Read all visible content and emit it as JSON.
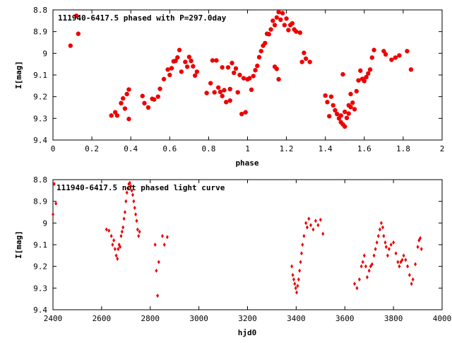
{
  "marker_color": "#ee0000",
  "chart_data": [
    {
      "type": "scatter",
      "title": "111940-6417.5 phased with P=297.0day",
      "xlabel": "phase",
      "ylabel": "I[mag]",
      "xlim": [
        0,
        2
      ],
      "ylim": [
        8.8,
        9.4
      ],
      "y_inverted": true,
      "x_ticks": [
        "0",
        "0.2",
        "0.4",
        "0.6",
        "0.8",
        "1",
        "1.2",
        "1.4",
        "1.6",
        "1.8",
        "2"
      ],
      "y_ticks": [
        "8.8",
        "8.9",
        "9",
        "9.1",
        "9.2",
        "9.3",
        "9.4"
      ],
      "grid": false,
      "marker": "filled-circle",
      "points": [
        [
          0.09,
          8.965
        ],
        [
          0.12,
          8.827
        ],
        [
          0.13,
          8.91
        ],
        [
          0.3,
          9.287
        ],
        [
          0.32,
          9.272
        ],
        [
          0.33,
          9.287
        ],
        [
          0.35,
          9.23
        ],
        [
          0.36,
          9.208
        ],
        [
          0.37,
          9.255
        ],
        [
          0.38,
          9.188
        ],
        [
          0.39,
          9.167
        ],
        [
          0.39,
          9.303
        ],
        [
          0.46,
          9.197
        ],
        [
          0.47,
          9.23
        ],
        [
          0.49,
          9.25
        ],
        [
          0.51,
          9.21
        ],
        [
          0.52,
          9.213
        ],
        [
          0.54,
          9.2
        ],
        [
          0.55,
          9.164
        ],
        [
          0.57,
          9.119
        ],
        [
          0.59,
          9.075
        ],
        [
          0.6,
          9.1
        ],
        [
          0.61,
          9.069
        ],
        [
          0.62,
          9.037
        ],
        [
          0.63,
          9.035
        ],
        [
          0.64,
          9.019
        ],
        [
          0.65,
          8.985
        ],
        [
          0.66,
          9.085
        ],
        [
          0.68,
          9.04
        ],
        [
          0.69,
          9.062
        ],
        [
          0.7,
          9.017
        ],
        [
          0.71,
          9.035
        ],
        [
          0.72,
          9.06
        ],
        [
          0.73,
          9.103
        ],
        [
          0.74,
          9.085
        ],
        [
          0.79,
          9.183
        ],
        [
          0.81,
          9.138
        ],
        [
          0.82,
          9.033
        ],
        [
          0.83,
          9.18
        ],
        [
          0.84,
          9.033
        ],
        [
          0.85,
          9.158
        ],
        [
          0.86,
          9.178
        ],
        [
          0.87,
          9.197
        ],
        [
          0.87,
          9.065
        ],
        [
          0.88,
          9.17
        ],
        [
          0.89,
          9.225
        ],
        [
          0.9,
          9.065
        ],
        [
          0.91,
          9.218
        ],
        [
          0.91,
          9.165
        ],
        [
          0.92,
          9.045
        ],
        [
          0.93,
          9.09
        ],
        [
          0.94,
          9.07
        ],
        [
          0.95,
          9.18
        ],
        [
          0.96,
          9.1
        ],
        [
          0.97,
          9.28
        ],
        [
          0.98,
          9.115
        ],
        [
          0.99,
          9.272
        ],
        [
          1.0,
          9.12
        ],
        [
          1.01,
          9.115
        ],
        [
          1.02,
          9.168
        ],
        [
          1.03,
          9.105
        ],
        [
          1.04,
          9.078
        ],
        [
          1.05,
          9.058
        ],
        [
          1.06,
          9.018
        ],
        [
          1.07,
          8.99
        ],
        [
          1.08,
          8.965
        ],
        [
          1.09,
          8.953
        ],
        [
          1.1,
          8.91
        ],
        [
          1.11,
          8.912
        ],
        [
          1.12,
          8.89
        ],
        [
          1.13,
          8.85
        ],
        [
          1.14,
          8.87
        ],
        [
          1.14,
          9.062
        ],
        [
          1.15,
          8.835
        ],
        [
          1.15,
          9.072
        ],
        [
          1.16,
          8.81
        ],
        [
          1.16,
          9.12
        ],
        [
          1.17,
          8.845
        ],
        [
          1.18,
          8.815
        ],
        [
          1.19,
          8.87
        ],
        [
          1.2,
          8.84
        ],
        [
          1.21,
          8.893
        ],
        [
          1.22,
          8.87
        ],
        [
          1.23,
          8.862
        ],
        [
          1.24,
          8.89
        ],
        [
          1.25,
          8.9
        ],
        [
          1.27,
          8.905
        ],
        [
          1.28,
          9.04
        ],
        [
          1.29,
          8.998
        ],
        [
          1.3,
          9.025
        ],
        [
          1.32,
          9.04
        ],
        [
          1.4,
          9.195
        ],
        [
          1.41,
          9.225
        ],
        [
          1.42,
          9.29
        ],
        [
          1.43,
          9.2
        ],
        [
          1.44,
          9.24
        ],
        [
          1.45,
          9.263
        ],
        [
          1.46,
          9.28
        ],
        [
          1.47,
          9.3
        ],
        [
          1.48,
          9.318
        ],
        [
          1.49,
          9.328
        ],
        [
          1.5,
          9.338
        ],
        [
          1.51,
          9.298
        ],
        [
          1.52,
          9.278
        ],
        [
          1.53,
          9.248
        ],
        [
          1.54,
          9.228
        ],
        [
          1.55,
          9.258
        ],
        [
          1.48,
          9.287
        ],
        [
          1.49,
          9.097
        ],
        [
          1.5,
          9.27
        ],
        [
          1.52,
          9.24
        ],
        [
          1.53,
          9.188
        ],
        [
          1.56,
          9.175
        ],
        [
          1.57,
          9.125
        ],
        [
          1.58,
          9.08
        ],
        [
          1.59,
          9.118
        ],
        [
          1.6,
          9.128
        ],
        [
          1.61,
          9.11
        ],
        [
          1.62,
          9.093
        ],
        [
          1.63,
          9.075
        ],
        [
          1.64,
          9.02
        ],
        [
          1.65,
          8.985
        ],
        [
          1.7,
          8.99
        ],
        [
          1.71,
          9.005
        ],
        [
          1.74,
          9.03
        ],
        [
          1.76,
          9.02
        ],
        [
          1.78,
          9.01
        ],
        [
          1.82,
          8.99
        ],
        [
          1.84,
          9.075
        ]
      ]
    },
    {
      "type": "scatter",
      "title": "111940-6417.5 not phased light curve",
      "xlabel": "hjd0",
      "ylabel": "I[mag]",
      "xlim": [
        2400,
        4000
      ],
      "ylim": [
        8.8,
        9.4
      ],
      "y_inverted": true,
      "x_ticks": [
        "2400",
        "2600",
        "2800",
        "3000",
        "3200",
        "3400",
        "3600",
        "3800",
        "4000"
      ],
      "y_ticks": [
        "8.8",
        "8.9",
        "9",
        "9.1",
        "9.2",
        "9.3",
        "9.4"
      ],
      "grid": false,
      "marker": "diamond",
      "points": [
        [
          2405,
          8.82
        ],
        [
          2412,
          8.91
        ],
        [
          2400,
          8.96
        ],
        [
          2620,
          9.03
        ],
        [
          2630,
          9.035
        ],
        [
          2640,
          9.06
        ],
        [
          2645,
          9.1
        ],
        [
          2650,
          9.08
        ],
        [
          2655,
          9.12
        ],
        [
          2660,
          9.15
        ],
        [
          2665,
          9.165
        ],
        [
          2668,
          9.12
        ],
        [
          2672,
          9.1
        ],
        [
          2676,
          9.11
        ],
        [
          2680,
          9.06
        ],
        [
          2684,
          9.04
        ],
        [
          2688,
          9.02
        ],
        [
          2692,
          8.98
        ],
        [
          2696,
          8.95
        ],
        [
          2700,
          8.9
        ],
        [
          2704,
          8.86
        ],
        [
          2708,
          8.84
        ],
        [
          2712,
          8.82
        ],
        [
          2716,
          8.815
        ],
        [
          2720,
          8.83
        ],
        [
          2724,
          8.85
        ],
        [
          2728,
          8.87
        ],
        [
          2732,
          8.9
        ],
        [
          2736,
          8.93
        ],
        [
          2740,
          8.96
        ],
        [
          2744,
          8.99
        ],
        [
          2748,
          9.03
        ],
        [
          2752,
          9.06
        ],
        [
          2756,
          9.04
        ],
        [
          2820,
          9.1
        ],
        [
          2825,
          9.22
        ],
        [
          2830,
          9.335
        ],
        [
          2835,
          9.18
        ],
        [
          2850,
          9.06
        ],
        [
          2858,
          9.1
        ],
        [
          2870,
          9.065
        ],
        [
          3382,
          9.2
        ],
        [
          3386,
          9.24
        ],
        [
          3390,
          9.26
        ],
        [
          3394,
          9.28
        ],
        [
          3398,
          9.3
        ],
        [
          3402,
          9.32
        ],
        [
          3406,
          9.29
        ],
        [
          3410,
          9.26
        ],
        [
          3414,
          9.22
        ],
        [
          3418,
          9.18
        ],
        [
          3422,
          9.14
        ],
        [
          3426,
          9.1
        ],
        [
          3432,
          9.06
        ],
        [
          3440,
          9.0
        ],
        [
          3445,
          9.02
        ],
        [
          3452,
          8.98
        ],
        [
          3460,
          9.01
        ],
        [
          3470,
          9.03
        ],
        [
          3480,
          8.99
        ],
        [
          3490,
          9.01
        ],
        [
          3500,
          8.985
        ],
        [
          3510,
          9.05
        ],
        [
          3640,
          9.28
        ],
        [
          3650,
          9.3
        ],
        [
          3660,
          9.26
        ],
        [
          3668,
          9.2
        ],
        [
          3674,
          9.18
        ],
        [
          3680,
          9.15
        ],
        [
          3686,
          9.2
        ],
        [
          3692,
          9.25
        ],
        [
          3700,
          9.22
        ],
        [
          3706,
          9.2
        ],
        [
          3712,
          9.19
        ],
        [
          3720,
          9.15
        ],
        [
          3726,
          9.12
        ],
        [
          3732,
          9.09
        ],
        [
          3738,
          9.06
        ],
        [
          3744,
          9.03
        ],
        [
          3750,
          9.0
        ],
        [
          3756,
          9.02
        ],
        [
          3760,
          9.06
        ],
        [
          3766,
          9.09
        ],
        [
          3770,
          9.11
        ],
        [
          3776,
          9.15
        ],
        [
          3782,
          9.12
        ],
        [
          3790,
          9.1
        ],
        [
          3800,
          9.09
        ],
        [
          3810,
          9.14
        ],
        [
          3818,
          9.18
        ],
        [
          3824,
          9.2
        ],
        [
          3830,
          9.18
        ],
        [
          3836,
          9.17
        ],
        [
          3842,
          9.15
        ],
        [
          3850,
          9.17
        ],
        [
          3858,
          9.2
        ],
        [
          3866,
          9.24
        ],
        [
          3874,
          9.28
        ],
        [
          3880,
          9.26
        ],
        [
          3890,
          9.19
        ],
        [
          3900,
          9.11
        ],
        [
          3905,
          9.08
        ],
        [
          3910,
          9.07
        ],
        [
          3915,
          9.12
        ]
      ]
    }
  ]
}
